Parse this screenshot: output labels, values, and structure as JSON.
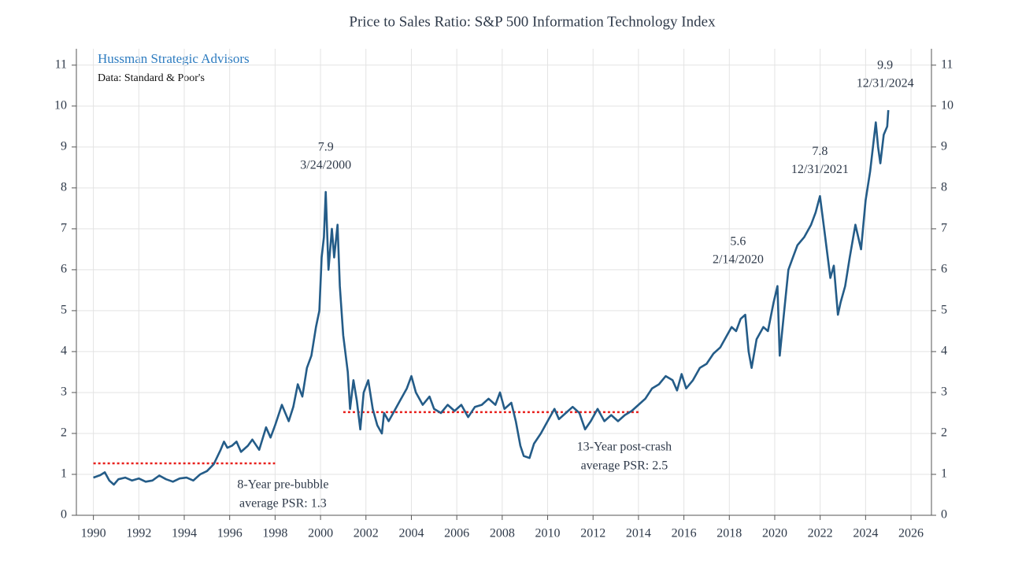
{
  "chart_data": {
    "type": "line",
    "title": "Price to Sales Ratio: S&P 500 Information Technology Index",
    "source_title": "Hussman Strategic Advisors",
    "source_note": "Data: Standard & Poor's",
    "color": "#245c88",
    "grid": true,
    "right_axis": true,
    "xlim": [
      1989.25,
      2026.9
    ],
    "ylim": [
      0,
      11.4
    ],
    "xticks": [
      1990,
      1992,
      1994,
      1996,
      1998,
      2000,
      2002,
      2004,
      2006,
      2008,
      2010,
      2012,
      2014,
      2016,
      2018,
      2020,
      2022,
      2024,
      2026
    ],
    "yticks": [
      0,
      1,
      2,
      3,
      4,
      5,
      6,
      7,
      8,
      9,
      10,
      11
    ],
    "x": [
      1990.0,
      1990.3,
      1990.5,
      1990.7,
      1990.9,
      1991.1,
      1991.4,
      1991.7,
      1992.0,
      1992.3,
      1992.6,
      1992.9,
      1993.2,
      1993.5,
      1993.8,
      1994.1,
      1994.4,
      1994.7,
      1995.0,
      1995.3,
      1995.6,
      1995.75,
      1995.9,
      1996.1,
      1996.3,
      1996.5,
      1996.8,
      1997.0,
      1997.3,
      1997.6,
      1997.8,
      1998.0,
      1998.3,
      1998.6,
      1998.8,
      1999.0,
      1999.2,
      1999.4,
      1999.6,
      1999.8,
      1999.95,
      2000.05,
      2000.15,
      2000.23,
      2000.35,
      2000.5,
      2000.6,
      2000.75,
      2000.85,
      2001.0,
      2001.2,
      2001.3,
      2001.45,
      2001.6,
      2001.75,
      2001.9,
      2002.1,
      2002.3,
      2002.5,
      2002.7,
      2002.8,
      2003.0,
      2003.2,
      2003.5,
      2003.8,
      2004.0,
      2004.2,
      2004.5,
      2004.8,
      2005.0,
      2005.3,
      2005.6,
      2005.9,
      2006.2,
      2006.5,
      2006.8,
      2007.1,
      2007.4,
      2007.7,
      2007.9,
      2008.1,
      2008.4,
      2008.6,
      2008.8,
      2008.95,
      2009.2,
      2009.4,
      2009.7,
      2010.0,
      2010.3,
      2010.5,
      2010.8,
      2011.1,
      2011.4,
      2011.65,
      2011.9,
      2012.2,
      2012.5,
      2012.8,
      2013.1,
      2013.4,
      2013.7,
      2014.0,
      2014.3,
      2014.6,
      2014.9,
      2015.2,
      2015.5,
      2015.7,
      2015.9,
      2016.1,
      2016.4,
      2016.7,
      2017.0,
      2017.3,
      2017.6,
      2017.9,
      2018.1,
      2018.3,
      2018.5,
      2018.7,
      2018.85,
      2018.98,
      2019.2,
      2019.5,
      2019.7,
      2019.95,
      2020.12,
      2020.22,
      2020.4,
      2020.6,
      2020.8,
      2021.0,
      2021.3,
      2021.6,
      2021.8,
      2021.99,
      2022.2,
      2022.45,
      2022.6,
      2022.78,
      2022.9,
      2023.1,
      2023.3,
      2023.55,
      2023.8,
      2024.0,
      2024.2,
      2024.45,
      2024.55,
      2024.65,
      2024.8,
      2024.95,
      2024.999
    ],
    "values": [
      0.92,
      0.98,
      1.05,
      0.85,
      0.75,
      0.88,
      0.92,
      0.85,
      0.9,
      0.82,
      0.85,
      0.97,
      0.88,
      0.82,
      0.9,
      0.92,
      0.85,
      1.0,
      1.08,
      1.25,
      1.6,
      1.8,
      1.65,
      1.7,
      1.8,
      1.55,
      1.7,
      1.85,
      1.6,
      2.15,
      1.9,
      2.2,
      2.7,
      2.3,
      2.65,
      3.2,
      2.9,
      3.6,
      3.9,
      4.6,
      5.0,
      6.3,
      6.8,
      7.9,
      6.0,
      7.0,
      6.3,
      7.1,
      5.6,
      4.4,
      3.5,
      2.6,
      3.3,
      2.8,
      2.1,
      3.0,
      3.3,
      2.6,
      2.2,
      2.0,
      2.5,
      2.3,
      2.5,
      2.8,
      3.1,
      3.4,
      3.0,
      2.7,
      2.9,
      2.6,
      2.5,
      2.7,
      2.55,
      2.7,
      2.4,
      2.65,
      2.7,
      2.85,
      2.7,
      3.0,
      2.6,
      2.75,
      2.3,
      1.7,
      1.45,
      1.4,
      1.75,
      2.0,
      2.3,
      2.6,
      2.35,
      2.5,
      2.65,
      2.5,
      2.1,
      2.3,
      2.6,
      2.3,
      2.45,
      2.3,
      2.45,
      2.55,
      2.7,
      2.85,
      3.1,
      3.2,
      3.4,
      3.3,
      3.05,
      3.45,
      3.1,
      3.3,
      3.6,
      3.7,
      3.95,
      4.1,
      4.4,
      4.6,
      4.5,
      4.8,
      4.9,
      4.0,
      3.6,
      4.3,
      4.6,
      4.5,
      5.2,
      5.6,
      3.9,
      4.9,
      6.0,
      6.3,
      6.6,
      6.8,
      7.1,
      7.4,
      7.8,
      6.9,
      5.8,
      6.1,
      4.9,
      5.2,
      5.6,
      6.3,
      7.1,
      6.5,
      7.7,
      8.4,
      9.6,
      9.0,
      8.6,
      9.3,
      9.5,
      9.9
    ],
    "annotations": [
      {
        "x": 2000.23,
        "y": 7.9,
        "text": "3/24/2000"
      },
      {
        "x": 2020.12,
        "y": 5.6,
        "text": "2/14/2020"
      },
      {
        "x": 2021.99,
        "y": 7.8,
        "text": "12/31/2021"
      },
      {
        "x": 2024.999,
        "y": 9.9,
        "text": "12/31/2024"
      }
    ],
    "reference_lines": [
      {
        "x_start": 1990,
        "x_end": 1998,
        "value": 1.27,
        "label_lines": [
          "8-Year pre-bubble",
          "average PSR: 1.3"
        ],
        "color": "#e8201c"
      },
      {
        "x_start": 2001,
        "x_end": 2014,
        "value": 2.52,
        "label_lines": [
          "13-Year post-crash",
          "average PSR: 2.5"
        ],
        "color": "#e8201c"
      }
    ]
  }
}
